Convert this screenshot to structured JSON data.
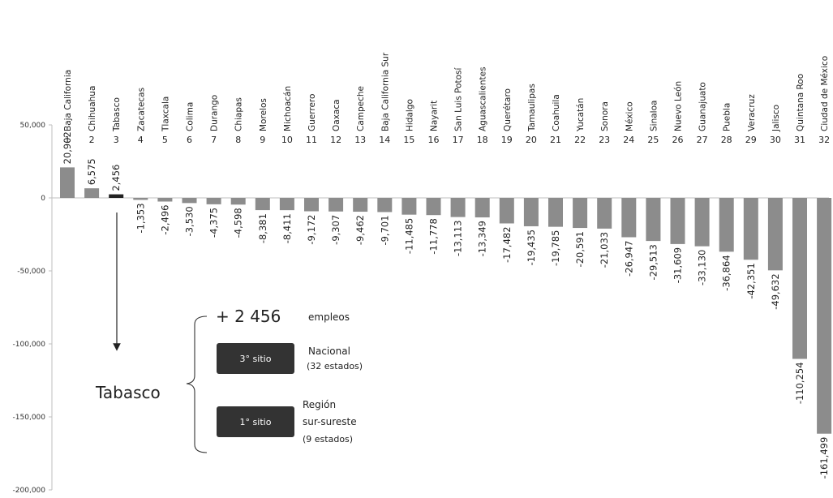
{
  "colors": {
    "bar": "#8c8c8c",
    "highlight_bar": "#222222",
    "axis": "#bfbfbf",
    "badge": "#333333"
  },
  "chart_data": {
    "type": "bar",
    "grid": false,
    "ylim": [
      -200000,
      50000
    ],
    "yticks": [
      50000,
      0,
      -50000,
      -100000,
      -150000,
      -200000
    ],
    "ytick_labels": [
      "50,000",
      "0",
      "-50,000",
      "-100,000",
      "-150,000",
      "-200,000"
    ],
    "ranks": [
      "1",
      "2",
      "3",
      "4",
      "5",
      "6",
      "7",
      "8",
      "9",
      "10",
      "11",
      "12",
      "13",
      "14",
      "15",
      "16",
      "17",
      "18",
      "19",
      "20",
      "21",
      "22",
      "23",
      "24",
      "25",
      "26",
      "27",
      "28",
      "29",
      "30",
      "31",
      "32"
    ],
    "categories": [
      "Baja California",
      "Chihuahua",
      "Tabasco",
      "Zacatecas",
      "Tlaxcala",
      "Colima",
      "Durango",
      "Chiapas",
      "Morelos",
      "Michoacán",
      "Guerrero",
      "Oaxaca",
      "Campeche",
      "Baja California Sur",
      "Hidalgo",
      "Nayarit",
      "San Luis Potosí",
      "Aguascalientes",
      "Querétaro",
      "Tamaulipas",
      "Coahuila",
      "Yucatán",
      "Sonora",
      "México",
      "Sinaloa",
      "Nuevo León",
      "Guanajuato",
      "Puebla",
      "Veracruz",
      "Jalisco",
      "Quintana Roo",
      "Ciudad de México"
    ],
    "values": [
      20902,
      6575,
      2456,
      -1353,
      -2496,
      -3530,
      -4375,
      -4598,
      -8381,
      -8411,
      -9172,
      -9307,
      -9462,
      -9701,
      -11485,
      -11778,
      -13113,
      -13349,
      -17482,
      -19435,
      -19785,
      -20591,
      -21033,
      -26947,
      -29513,
      -31609,
      -33130,
      -36864,
      -42351,
      -49632,
      -110254,
      -161499
    ],
    "value_labels": [
      "20,902",
      "6,575",
      "2,456",
      "-1,353",
      "-2,496",
      "-3,530",
      "-4,375",
      "-4,598",
      "-8,381",
      "-8,411",
      "-9,172",
      "-9,307",
      "-9,462",
      "-9,701",
      "-11,485",
      "-11,778",
      "-13,113",
      "-13,349",
      "-17,482",
      "-19,435",
      "-19,785",
      "-20,591",
      "-21,033",
      "-26,947",
      "-29,513",
      "-31,609",
      "-33,130",
      "-36,864",
      "-42,351",
      "-49,632",
      "-110,254",
      "-161,499"
    ],
    "highlight_index": 2
  },
  "annotation": {
    "state": "Tabasco",
    "jobs_value": "+ 2 456",
    "jobs_unit": "empleos",
    "national_badge": "3° sitio",
    "national_title": "Nacional",
    "national_sub": "(32 estados)",
    "regional_badge": "1° sitio",
    "regional_title_1": "Región",
    "regional_title_2": "sur-sureste",
    "regional_sub": "(9 estados)"
  }
}
